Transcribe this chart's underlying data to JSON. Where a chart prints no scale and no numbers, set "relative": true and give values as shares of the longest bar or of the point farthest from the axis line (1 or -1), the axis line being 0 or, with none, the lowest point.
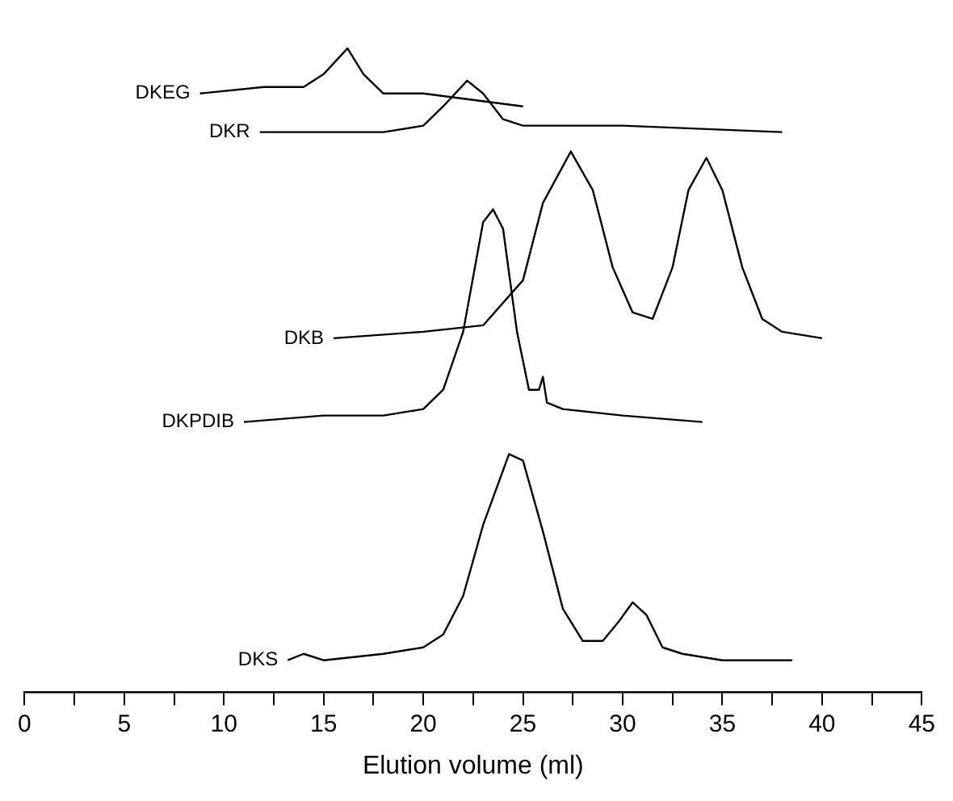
{
  "chart_data": {
    "type": "line",
    "xlabel": "Elution volume (ml)",
    "relative": true,
    "grid": false,
    "legend": false,
    "marker": "none",
    "line_style": "solid",
    "xlim": [
      0,
      45
    ],
    "xticks": [
      0,
      {
        "value": 2.5,
        "label": null
      },
      5,
      {
        "value": 7.5,
        "label": null
      },
      10,
      {
        "value": 12.5,
        "label": null
      },
      15,
      {
        "value": 17.5,
        "label": null
      },
      20,
      {
        "value": 22.5,
        "label": null
      },
      25,
      {
        "value": 27.5,
        "label": null
      },
      30,
      {
        "value": 32.5,
        "label": null
      },
      35,
      {
        "value": 37.5,
        "label": null
      },
      40,
      {
        "value": 42.5,
        "label": null
      },
      45
    ],
    "series": [
      {
        "name": "DKEG",
        "color": "#000000",
        "x": [
          8.8,
          12,
          14,
          15,
          16.2,
          17,
          18,
          20,
          25
        ],
        "values": [
          0.93,
          0.94,
          0.94,
          0.96,
          1.0,
          0.96,
          0.93,
          0.93,
          0.91
        ]
      },
      {
        "name": "DKR",
        "color": "#000000",
        "x": [
          11.8,
          15,
          18,
          20,
          21,
          22.2,
          23,
          24,
          25,
          26,
          30,
          38
        ],
        "values": [
          0.87,
          0.87,
          0.87,
          0.88,
          0.91,
          0.95,
          0.93,
          0.89,
          0.88,
          0.88,
          0.88,
          0.87
        ]
      },
      {
        "name": "DKB",
        "color": "#000000",
        "x": [
          15.5,
          20,
          23,
          25,
          26,
          27.4,
          28.5,
          29.5,
          30.5,
          31.5,
          32.5,
          33.3,
          34.2,
          35,
          36,
          37,
          38,
          40
        ],
        "values": [
          0.55,
          0.56,
          0.57,
          0.64,
          0.76,
          0.84,
          0.78,
          0.66,
          0.59,
          0.58,
          0.66,
          0.78,
          0.83,
          0.78,
          0.66,
          0.58,
          0.56,
          0.55
        ]
      },
      {
        "name": "DKPDIB",
        "color": "#000000",
        "x": [
          11,
          15,
          18,
          20,
          21,
          22,
          23,
          23.5,
          24,
          24.7,
          25.3,
          25.8,
          26,
          26.2,
          27,
          30,
          34
        ],
        "values": [
          0.42,
          0.43,
          0.43,
          0.44,
          0.47,
          0.56,
          0.73,
          0.75,
          0.72,
          0.56,
          0.47,
          0.47,
          0.49,
          0.45,
          0.44,
          0.43,
          0.42
        ]
      },
      {
        "name": "DKS",
        "color": "#000000",
        "x": [
          13.2,
          14,
          15,
          18,
          20,
          21,
          22,
          23,
          24.3,
          25,
          26,
          27,
          28,
          29,
          29.8,
          30.5,
          31.2,
          32,
          33,
          35,
          38.5
        ],
        "values": [
          0.05,
          0.06,
          0.05,
          0.06,
          0.07,
          0.09,
          0.15,
          0.26,
          0.37,
          0.36,
          0.25,
          0.13,
          0.08,
          0.08,
          0.11,
          0.14,
          0.12,
          0.07,
          0.06,
          0.05,
          0.05
        ]
      }
    ]
  }
}
